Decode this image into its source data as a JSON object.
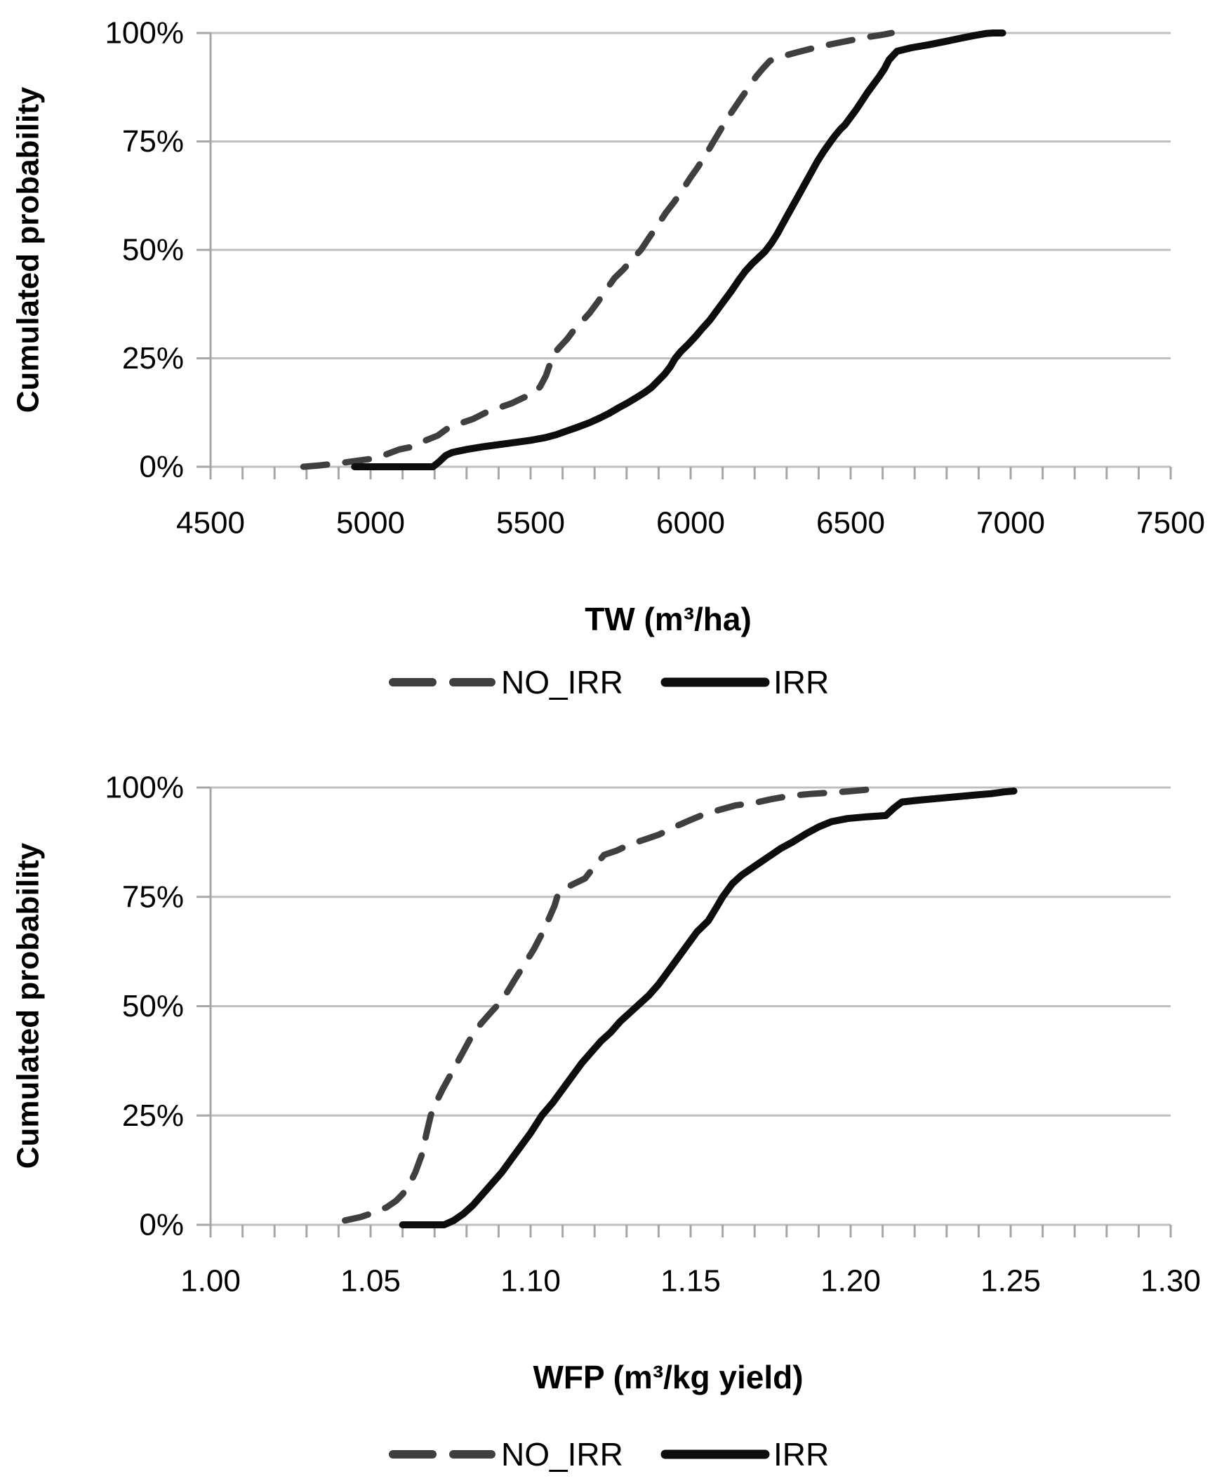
{
  "figure": {
    "background": "#ffffff",
    "gridline_color": "#bfbfbf",
    "axis_color": "#a6a6a6",
    "text_color": "#000000"
  },
  "chart_data": [
    {
      "type": "line",
      "variant": "cumulative-distribution",
      "title": "",
      "xlabel": "TW (m³/ha)",
      "ylabel": "Cumulated probability",
      "xlim": [
        4500,
        7500
      ],
      "ylim": [
        0,
        100
      ],
      "grid": "horizontal",
      "legend_position": "bottom",
      "x_minor_step": 100,
      "xticks": [
        {
          "v": 4500,
          "label": "4500"
        },
        {
          "v": 5000,
          "label": "5000"
        },
        {
          "v": 5500,
          "label": "5500"
        },
        {
          "v": 6000,
          "label": "6000"
        },
        {
          "v": 6500,
          "label": "6500"
        },
        {
          "v": 7000,
          "label": "7000"
        },
        {
          "v": 7500,
          "label": "7500"
        }
      ],
      "yticks": [
        {
          "v": 0,
          "label": "0%"
        },
        {
          "v": 25,
          "label": "25%"
        },
        {
          "v": 50,
          "label": "50%"
        },
        {
          "v": 75,
          "label": "75%"
        },
        {
          "v": 100,
          "label": "100%"
        }
      ],
      "series": [
        {
          "name": "NO_IRR",
          "style": "dashed",
          "color": "#3f3f3f",
          "width": 9,
          "points": [
            [
              4790,
              0
            ],
            [
              4840,
              0.3
            ],
            [
              4900,
              0.8
            ],
            [
              4960,
              1.4
            ],
            [
              5000,
              1.8
            ],
            [
              5040,
              2.6
            ],
            [
              5090,
              4
            ],
            [
              5130,
              4.6
            ],
            [
              5170,
              6
            ],
            [
              5210,
              7.2
            ],
            [
              5240,
              8.8
            ],
            [
              5280,
              10
            ],
            [
              5320,
              11
            ],
            [
              5360,
              12.5
            ],
            [
              5400,
              13.6
            ],
            [
              5440,
              14.6
            ],
            [
              5480,
              16
            ],
            [
              5510,
              16.8
            ],
            [
              5530,
              18.5
            ],
            [
              5548,
              21
            ],
            [
              5562,
              24
            ],
            [
              5572,
              26
            ],
            [
              5590,
              27.5
            ],
            [
              5615,
              29.5
            ],
            [
              5635,
              31.5
            ],
            [
              5660,
              33.5
            ],
            [
              5685,
              35.5
            ],
            [
              5710,
              38
            ],
            [
              5738,
              41
            ],
            [
              5762,
              43.5
            ],
            [
              5790,
              45.5
            ],
            [
              5820,
              48
            ],
            [
              5845,
              50
            ],
            [
              5872,
              53
            ],
            [
              5900,
              56
            ],
            [
              5922,
              58.5
            ],
            [
              5948,
              61
            ],
            [
              5972,
              63.5
            ],
            [
              5998,
              66.5
            ],
            [
              6022,
              69
            ],
            [
              6048,
              72
            ],
            [
              6072,
              75
            ],
            [
              6092,
              77.5
            ],
            [
              6112,
              80
            ],
            [
              6135,
              82.5
            ],
            [
              6158,
              85
            ],
            [
              6182,
              87.5
            ],
            [
              6205,
              90
            ],
            [
              6228,
              92
            ],
            [
              6248,
              93.6
            ],
            [
              6285,
              94.6
            ],
            [
              6330,
              95.5
            ],
            [
              6378,
              96.4
            ],
            [
              6425,
              97.2
            ],
            [
              6472,
              97.9
            ],
            [
              6520,
              98.6
            ],
            [
              6565,
              99.2
            ],
            [
              6600,
              99.6
            ],
            [
              6628,
              100
            ]
          ]
        },
        {
          "name": "IRR",
          "style": "solid",
          "color": "#0d0d0d",
          "width": 10,
          "points": [
            [
              4950,
              0
            ],
            [
              5195,
              0
            ],
            [
              5215,
              1.2
            ],
            [
              5235,
              2.6
            ],
            [
              5255,
              3.3
            ],
            [
              5300,
              4
            ],
            [
              5350,
              4.6
            ],
            [
              5400,
              5.1
            ],
            [
              5450,
              5.6
            ],
            [
              5500,
              6.1
            ],
            [
              5545,
              6.7
            ],
            [
              5580,
              7.4
            ],
            [
              5615,
              8.3
            ],
            [
              5650,
              9.2
            ],
            [
              5685,
              10.2
            ],
            [
              5715,
              11.2
            ],
            [
              5745,
              12.3
            ],
            [
              5775,
              13.6
            ],
            [
              5805,
              14.8
            ],
            [
              5832,
              16
            ],
            [
              5858,
              17.2
            ],
            [
              5878,
              18.3
            ],
            [
              5898,
              19.8
            ],
            [
              5918,
              21.3
            ],
            [
              5936,
              23
            ],
            [
              5952,
              25
            ],
            [
              5970,
              26.6
            ],
            [
              5992,
              28.2
            ],
            [
              6015,
              30
            ],
            [
              6038,
              32
            ],
            [
              6060,
              33.8
            ],
            [
              6082,
              36
            ],
            [
              6105,
              38.3
            ],
            [
              6128,
              40.6
            ],
            [
              6150,
              43
            ],
            [
              6170,
              45
            ],
            [
              6192,
              46.8
            ],
            [
              6212,
              48.2
            ],
            [
              6232,
              49.6
            ],
            [
              6252,
              51.5
            ],
            [
              6270,
              53.6
            ],
            [
              6288,
              56
            ],
            [
              6306,
              58.4
            ],
            [
              6324,
              60.8
            ],
            [
              6342,
              63.2
            ],
            [
              6360,
              65.6
            ],
            [
              6378,
              68
            ],
            [
              6396,
              70.4
            ],
            [
              6415,
              72.6
            ],
            [
              6438,
              75
            ],
            [
              6452,
              76.4
            ],
            [
              6468,
              77.8
            ],
            [
              6482,
              78.8
            ],
            [
              6500,
              80.6
            ],
            [
              6518,
              82.4
            ],
            [
              6536,
              84.4
            ],
            [
              6554,
              86.4
            ],
            [
              6572,
              88.2
            ],
            [
              6590,
              90
            ],
            [
              6606,
              91.8
            ],
            [
              6620,
              93.8
            ],
            [
              6645,
              95.8
            ],
            [
              6690,
              96.6
            ],
            [
              6745,
              97.3
            ],
            [
              6800,
              98.1
            ],
            [
              6845,
              98.8
            ],
            [
              6885,
              99.4
            ],
            [
              6925,
              99.9
            ],
            [
              6945,
              100
            ],
            [
              6975,
              100
            ]
          ]
        }
      ]
    },
    {
      "type": "line",
      "variant": "cumulative-distribution",
      "title": "",
      "xlabel": "WFP (m³/kg yield)",
      "ylabel": "Cumulated probability",
      "xlim": [
        1.0,
        1.3
      ],
      "ylim": [
        0,
        100
      ],
      "grid": "horizontal",
      "legend_position": "bottom",
      "x_minor_step": 0.01,
      "xticks": [
        {
          "v": 1.0,
          "label": "1.00"
        },
        {
          "v": 1.05,
          "label": "1.05"
        },
        {
          "v": 1.1,
          "label": "1.10"
        },
        {
          "v": 1.15,
          "label": "1.15"
        },
        {
          "v": 1.2,
          "label": "1.20"
        },
        {
          "v": 1.25,
          "label": "1.25"
        },
        {
          "v": 1.3,
          "label": "1.30"
        }
      ],
      "yticks": [
        {
          "v": 0,
          "label": "0%"
        },
        {
          "v": 25,
          "label": "25%"
        },
        {
          "v": 50,
          "label": "50%"
        },
        {
          "v": 75,
          "label": "75%"
        },
        {
          "v": 100,
          "label": "100%"
        }
      ],
      "series": [
        {
          "name": "NO_IRR",
          "style": "dashed",
          "color": "#3f3f3f",
          "width": 9,
          "points": [
            [
              1.042,
              1
            ],
            [
              1.047,
              1.8
            ],
            [
              1.051,
              2.8
            ],
            [
              1.055,
              4
            ],
            [
              1.058,
              5.5
            ],
            [
              1.06,
              7
            ],
            [
              1.062,
              9
            ],
            [
              1.064,
              12
            ],
            [
              1.066,
              16
            ],
            [
              1.0675,
              21
            ],
            [
              1.0688,
              25
            ],
            [
              1.0705,
              28
            ],
            [
              1.0725,
              31
            ],
            [
              1.0755,
              35
            ],
            [
              1.0785,
              39
            ],
            [
              1.0815,
              43
            ],
            [
              1.0845,
              46
            ],
            [
              1.0875,
              48.5
            ],
            [
              1.09,
              50.5
            ],
            [
              1.0925,
              53
            ],
            [
              1.095,
              56
            ],
            [
              1.098,
              59.5
            ],
            [
              1.101,
              63
            ],
            [
              1.1035,
              66.5
            ],
            [
              1.106,
              70.5
            ],
            [
              1.1075,
              73
            ],
            [
              1.1085,
              75.5
            ],
            [
              1.11,
              76.5
            ],
            [
              1.113,
              77.8
            ],
            [
              1.117,
              79.2
            ],
            [
              1.12,
              82
            ],
            [
              1.123,
              84.6
            ],
            [
              1.127,
              85.6
            ],
            [
              1.131,
              87
            ],
            [
              1.136,
              88.2
            ],
            [
              1.14,
              89.2
            ],
            [
              1.145,
              91
            ],
            [
              1.15,
              92.6
            ],
            [
              1.154,
              93.8
            ],
            [
              1.159,
              94.9
            ],
            [
              1.164,
              95.9
            ],
            [
              1.17,
              96.5
            ],
            [
              1.175,
              97.3
            ],
            [
              1.181,
              98.1
            ],
            [
              1.187,
              98.5
            ],
            [
              1.193,
              98.8
            ],
            [
              1.199,
              99.1
            ],
            [
              1.205,
              99.5
            ],
            [
              1.21,
              100
            ]
          ]
        },
        {
          "name": "IRR",
          "style": "solid",
          "color": "#0d0d0d",
          "width": 10,
          "points": [
            [
              1.06,
              0
            ],
            [
              1.073,
              0
            ],
            [
              1.076,
              1
            ],
            [
              1.079,
              2.5
            ],
            [
              1.082,
              4.5
            ],
            [
              1.085,
              7
            ],
            [
              1.088,
              9.5
            ],
            [
              1.091,
              12
            ],
            [
              1.094,
              15
            ],
            [
              1.097,
              18
            ],
            [
              1.1,
              21
            ],
            [
              1.1035,
              25
            ],
            [
              1.107,
              28
            ],
            [
              1.11,
              31
            ],
            [
              1.113,
              34
            ],
            [
              1.116,
              37
            ],
            [
              1.119,
              39.5
            ],
            [
              1.122,
              42
            ],
            [
              1.125,
              44
            ],
            [
              1.128,
              46.5
            ],
            [
              1.131,
              48.5
            ],
            [
              1.134,
              50.5
            ],
            [
              1.137,
              52.5
            ],
            [
              1.14,
              55
            ],
            [
              1.143,
              58
            ],
            [
              1.146,
              61
            ],
            [
              1.149,
              64
            ],
            [
              1.152,
              67
            ],
            [
              1.1555,
              69.5
            ],
            [
              1.158,
              72.5
            ],
            [
              1.16,
              75
            ],
            [
              1.163,
              78
            ],
            [
              1.166,
              80
            ],
            [
              1.17,
              82
            ],
            [
              1.174,
              84
            ],
            [
              1.178,
              86
            ],
            [
              1.182,
              87.6
            ],
            [
              1.186,
              89.4
            ],
            [
              1.19,
              91
            ],
            [
              1.194,
              92.2
            ],
            [
              1.199,
              92.9
            ],
            [
              1.205,
              93.3
            ],
            [
              1.211,
              93.6
            ],
            [
              1.2135,
              95.3
            ],
            [
              1.216,
              96.7
            ],
            [
              1.221,
              97.1
            ],
            [
              1.227,
              97.5
            ],
            [
              1.233,
              97.9
            ],
            [
              1.239,
              98.3
            ],
            [
              1.244,
              98.6
            ],
            [
              1.248,
              99
            ],
            [
              1.251,
              99.2
            ]
          ]
        }
      ]
    }
  ]
}
